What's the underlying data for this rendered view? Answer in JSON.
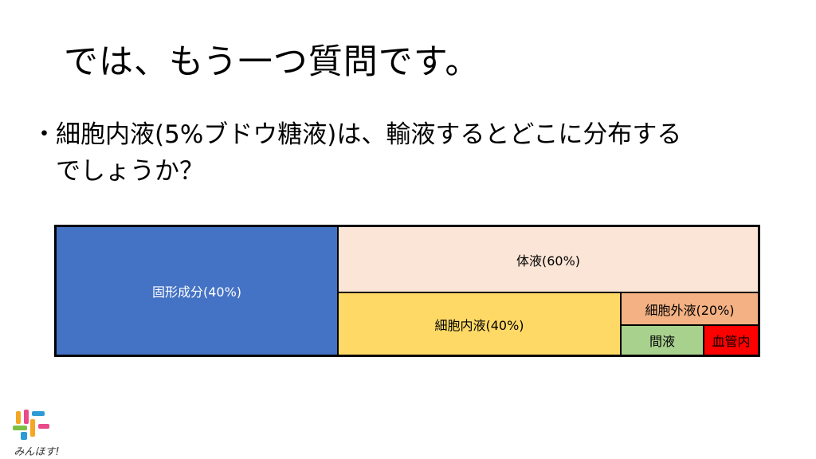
{
  "slide": {
    "title": "では、もう一つ質問です。",
    "bullet_marker": "・",
    "question_line1": "細胞内液(5%ブドウ糖液)は、輸液するとどこに分布する",
    "question_line2": "でしょうか？"
  },
  "diagram": {
    "solid": {
      "label": "固形成分(40%)",
      "color": "#4472C4",
      "text_color": "#ffffff"
    },
    "body_fluid": {
      "label": "体液(60%)",
      "color": "#FBE5D6"
    },
    "icf": {
      "label": "細胞内液(40%)",
      "color": "#FFD966"
    },
    "ecf": {
      "label": "細胞外液(20%)",
      "color": "#F4B183"
    },
    "interstitial": {
      "label": "間液",
      "color": "#A9D18E"
    },
    "intravascular": {
      "label": "血管内",
      "color": "#FF0000"
    }
  },
  "logo": {
    "text": "みんほす!",
    "colors": [
      "#F5A623",
      "#E94B8A",
      "#2F9BD6",
      "#7CC043"
    ]
  }
}
